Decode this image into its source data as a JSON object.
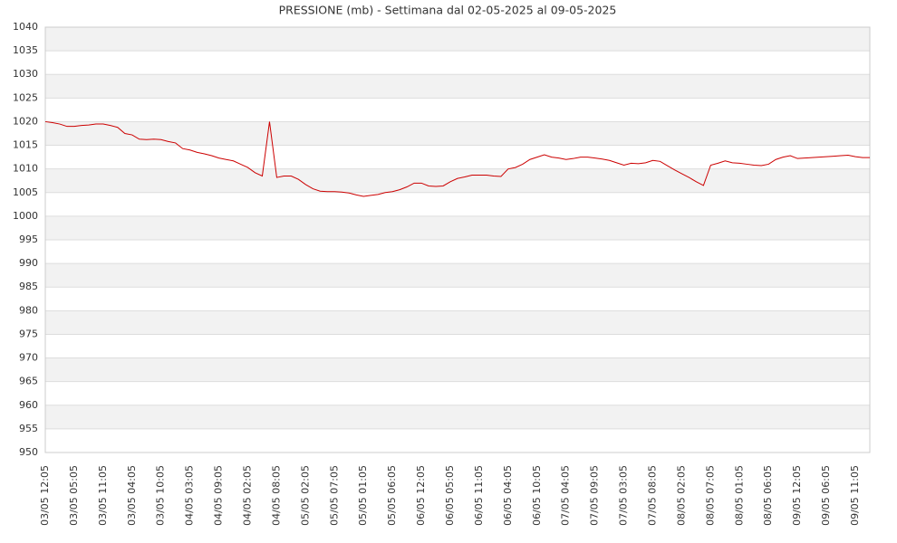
{
  "chart_data": {
    "type": "line",
    "title": "PRESSIONE (mb) - Settimana dal 02-05-2025 al 09-05-2025",
    "categories": [
      "03/05 12:05",
      null,
      null,
      null,
      "03/05 05:05",
      null,
      null,
      null,
      "03/05 11:05",
      null,
      null,
      null,
      "03/05 04:05",
      null,
      null,
      null,
      "03/05 10:05",
      null,
      null,
      null,
      "04/05 03:05",
      null,
      null,
      null,
      "04/05 09:05",
      null,
      null,
      null,
      "04/05 02:05",
      null,
      null,
      null,
      "04/05 08:05",
      null,
      null,
      null,
      "05/05 02:05",
      null,
      null,
      null,
      "05/05 07:05",
      null,
      null,
      null,
      "05/05 01:05",
      null,
      null,
      null,
      "05/05 06:05",
      null,
      null,
      null,
      "06/05 12:05",
      null,
      null,
      null,
      "06/05 05:05",
      null,
      null,
      null,
      "06/05 11:05",
      null,
      null,
      null,
      "06/05 04:05",
      null,
      null,
      null,
      "06/05 10:05",
      null,
      null,
      null,
      "07/05 04:05",
      null,
      null,
      null,
      "07/05 09:05",
      null,
      null,
      null,
      "07/05 03:05",
      null,
      null,
      null,
      "07/05 08:05",
      null,
      null,
      null,
      "08/05 02:05",
      null,
      null,
      null,
      "08/05 07:05",
      null,
      null,
      null,
      "08/05 01:05",
      null,
      null,
      null,
      "08/05 06:05",
      null,
      null,
      null,
      "09/05 12:05",
      null,
      null,
      null,
      "09/05 06:05",
      null,
      null,
      null,
      "09/05 11:05",
      null,
      null
    ],
    "values": [
      1020,
      1019.8,
      1019.5,
      1019,
      1019,
      1019.2,
      1019.3,
      1019.5,
      1019.5,
      1019.2,
      1018.8,
      1017.5,
      1017.2,
      1016.3,
      1016.2,
      1016.3,
      1016.2,
      1015.8,
      1015.5,
      1014.3,
      1014,
      1013.5,
      1013.2,
      1012.8,
      1012.3,
      1012,
      1011.7,
      1011,
      1010.3,
      1009.2,
      1008.5,
      1020,
      1008.2,
      1008.5,
      1008.5,
      1007.8,
      1006.7,
      1005.8,
      1005.3,
      1005.2,
      1005.2,
      1005.1,
      1004.9,
      1004.5,
      1004.2,
      1004.4,
      1004.6,
      1005,
      1005.2,
      1005.6,
      1006.2,
      1007,
      1007,
      1006.4,
      1006.3,
      1006.4,
      1007.3,
      1008,
      1008.3,
      1008.7,
      1008.7,
      1008.7,
      1008.5,
      1008.4,
      1010,
      1010.3,
      1011,
      1012,
      1012.5,
      1013,
      1012.5,
      1012.3,
      1012,
      1012.2,
      1012.5,
      1012.5,
      1012.3,
      1012.1,
      1011.8,
      1011.3,
      1010.8,
      1011.2,
      1011.1,
      1011.3,
      1011.8,
      1011.6,
      1010.7,
      1009.8,
      1009,
      1008.2,
      1007.3,
      1006.5,
      1010.8,
      1011.2,
      1011.7,
      1011.3,
      1011.2,
      1011,
      1010.8,
      1010.7,
      1011,
      1012,
      1012.5,
      1012.8,
      1012.2,
      1012.3,
      1012.4,
      1012.5,
      1012.6,
      1012.7,
      1012.8,
      1012.9,
      1012.6,
      1012.4,
      1012.4
    ],
    "color": "#cc0000",
    "ylim": [
      950,
      1040
    ],
    "yticks": [
      950,
      955,
      960,
      965,
      970,
      975,
      980,
      985,
      990,
      995,
      1000,
      1005,
      1010,
      1015,
      1020,
      1025,
      1030,
      1035,
      1040
    ],
    "grid": true
  }
}
